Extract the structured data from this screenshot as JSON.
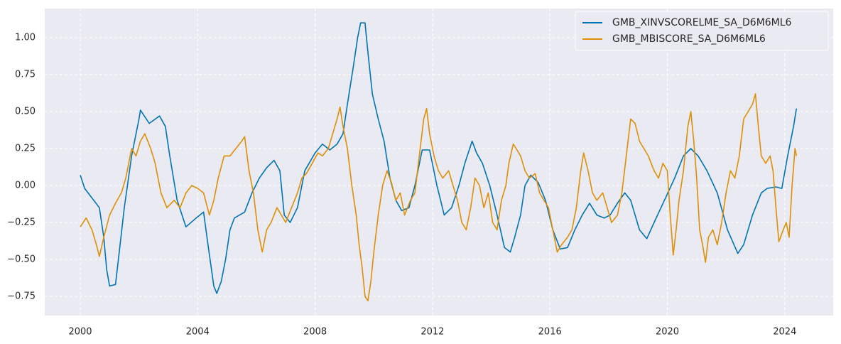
{
  "chart_data": {
    "type": "line",
    "xlim": [
      1998.79,
      2025.65
    ],
    "ylim": [
      -0.88,
      1.197
    ],
    "xticks": [
      2000,
      2004,
      2008,
      2012,
      2016,
      2020,
      2024
    ],
    "yticks": [
      {
        "value": -0.75,
        "label": "−0.75"
      },
      {
        "value": -0.5,
        "label": "−0.50"
      },
      {
        "value": -0.25,
        "label": "−0.25"
      },
      {
        "value": 0,
        "label": "0.00"
      },
      {
        "value": 0.25,
        "label": "0.25"
      },
      {
        "value": 0.5,
        "label": "0.50"
      },
      {
        "value": 0.75,
        "label": "0.75"
      },
      {
        "value": 1,
        "label": "1.00"
      }
    ],
    "grid": true,
    "legend": "upper right",
    "series": [
      {
        "name": "GMB_XINVSCORELME_SA_D6M6ML6",
        "color": "#0173b2",
        "x": [
          2000.0,
          2000.15,
          2000.65,
          2000.8,
          2000.9,
          2001.0,
          2001.2,
          2001.3,
          2001.5,
          2001.75,
          2002.0,
          2002.05,
          2002.35,
          2002.7,
          2002.9,
          2003.05,
          2003.3,
          2003.6,
          2003.95,
          2004.2,
          2004.35,
          2004.55,
          2004.65,
          2004.8,
          2004.95,
          2005.1,
          2005.25,
          2005.6,
          2005.85,
          2006.1,
          2006.35,
          2006.6,
          2006.8,
          2006.95,
          2007.15,
          2007.4,
          2007.65,
          2008.0,
          2008.25,
          2008.5,
          2008.75,
          2008.95,
          2009.1,
          2009.3,
          2009.45,
          2009.55,
          2009.7,
          2009.8,
          2009.95,
          2010.15,
          2010.35,
          2010.55,
          2010.75,
          2010.95,
          2011.2,
          2011.4,
          2011.65,
          2011.9,
          2012.15,
          2012.4,
          2012.65,
          2012.9,
          2013.1,
          2013.35,
          2013.5,
          2013.7,
          2013.95,
          2014.2,
          2014.45,
          2014.65,
          2014.8,
          2015.0,
          2015.15,
          2015.35,
          2015.6,
          2015.85,
          2016.1,
          2016.35,
          2016.6,
          2016.85,
          2017.1,
          2017.35,
          2017.6,
          2017.85,
          2018.05,
          2018.3,
          2018.55,
          2018.75,
          2019.05,
          2019.3,
          2019.55,
          2019.9,
          2020.25,
          2020.55,
          2020.8,
          2021.05,
          2021.35,
          2021.7,
          2022.05,
          2022.4,
          2022.6,
          2022.9,
          2023.2,
          2023.4,
          2023.7,
          2023.9,
          2024.1,
          2024.3,
          2024.4
        ],
        "values": [
          0.07,
          -0.02,
          -0.15,
          -0.35,
          -0.57,
          -0.68,
          -0.67,
          -0.5,
          -0.15,
          0.2,
          0.45,
          0.51,
          0.42,
          0.47,
          0.4,
          0.2,
          -0.1,
          -0.28,
          -0.22,
          -0.18,
          -0.4,
          -0.68,
          -0.73,
          -0.65,
          -0.5,
          -0.3,
          -0.22,
          -0.18,
          -0.05,
          0.05,
          0.12,
          0.17,
          0.1,
          -0.2,
          -0.25,
          -0.15,
          0.1,
          0.22,
          0.28,
          0.24,
          0.28,
          0.35,
          0.55,
          0.8,
          1.0,
          1.1,
          1.1,
          0.9,
          0.62,
          0.45,
          0.3,
          0.05,
          -0.1,
          -0.17,
          -0.15,
          0.0,
          0.24,
          0.24,
          0.0,
          -0.2,
          -0.15,
          0.0,
          0.15,
          0.3,
          0.22,
          0.15,
          0.0,
          -0.2,
          -0.42,
          -0.45,
          -0.35,
          -0.2,
          0.0,
          0.07,
          0.02,
          -0.1,
          -0.3,
          -0.43,
          -0.42,
          -0.3,
          -0.2,
          -0.12,
          -0.2,
          -0.22,
          -0.2,
          -0.12,
          -0.05,
          -0.1,
          -0.3,
          -0.36,
          -0.25,
          -0.1,
          0.05,
          0.2,
          0.25,
          0.2,
          0.1,
          -0.05,
          -0.3,
          -0.46,
          -0.4,
          -0.2,
          -0.05,
          -0.02,
          -0.01,
          -0.02,
          0.2,
          0.4,
          0.52
        ]
      },
      {
        "name": "GMB_MBISCORE_SA_D6M6ML6",
        "color": "#de8f05",
        "x": [
          2000.0,
          2000.2,
          2000.4,
          2000.55,
          2000.65,
          2000.8,
          2001.0,
          2001.2,
          2001.4,
          2001.55,
          2001.75,
          2001.9,
          2002.05,
          2002.2,
          2002.4,
          2002.55,
          2002.75,
          2002.95,
          2003.2,
          2003.4,
          2003.6,
          2003.8,
          2004.0,
          2004.2,
          2004.4,
          2004.55,
          2004.7,
          2004.9,
          2005.1,
          2005.3,
          2005.5,
          2005.6,
          2005.75,
          2005.9,
          2006.05,
          2006.2,
          2006.35,
          2006.5,
          2006.7,
          2006.85,
          2007.0,
          2007.2,
          2007.4,
          2007.55,
          2007.7,
          2007.9,
          2008.1,
          2008.25,
          2008.45,
          2008.6,
          2008.75,
          2008.85,
          2008.95,
          2009.1,
          2009.25,
          2009.4,
          2009.5,
          2009.6,
          2009.7,
          2009.8,
          2009.9,
          2010.0,
          2010.15,
          2010.3,
          2010.45,
          2010.6,
          2010.75,
          2010.9,
          2011.05,
          2011.25,
          2011.4,
          2011.55,
          2011.7,
          2011.8,
          2011.9,
          2012.05,
          2012.2,
          2012.35,
          2012.55,
          2012.7,
          2012.85,
          2013.0,
          2013.15,
          2013.3,
          2013.45,
          2013.6,
          2013.75,
          2013.9,
          2014.05,
          2014.2,
          2014.35,
          2014.5,
          2014.6,
          2014.75,
          2014.85,
          2015.0,
          2015.15,
          2015.3,
          2015.5,
          2015.65,
          2015.8,
          2015.95,
          2016.1,
          2016.25,
          2016.4,
          2016.6,
          2016.75,
          2016.9,
          2017.05,
          2017.15,
          2017.3,
          2017.45,
          2017.6,
          2017.8,
          2017.95,
          2018.1,
          2018.3,
          2018.45,
          2018.6,
          2018.75,
          2018.9,
          2019.05,
          2019.2,
          2019.35,
          2019.55,
          2019.7,
          2019.85,
          2020.0,
          2020.1,
          2020.2,
          2020.3,
          2020.4,
          2020.55,
          2020.7,
          2020.8,
          2020.9,
          2021.0,
          2021.1,
          2021.2,
          2021.3,
          2021.4,
          2021.55,
          2021.7,
          2021.85,
          2022.0,
          2022.15,
          2022.3,
          2022.45,
          2022.6,
          2022.75,
          2022.9,
          2023.0,
          2023.1,
          2023.2,
          2023.35,
          2023.5,
          2023.6,
          2023.7,
          2023.8,
          2023.95,
          2024.05,
          2024.15,
          2024.25,
          2024.35,
          2024.4
        ],
        "values": [
          -0.28,
          -0.22,
          -0.3,
          -0.4,
          -0.48,
          -0.35,
          -0.2,
          -0.12,
          -0.05,
          0.05,
          0.25,
          0.2,
          0.3,
          0.35,
          0.25,
          0.15,
          -0.05,
          -0.15,
          -0.1,
          -0.15,
          -0.05,
          0.0,
          -0.02,
          -0.05,
          -0.2,
          -0.1,
          0.05,
          0.2,
          0.2,
          0.25,
          0.3,
          0.33,
          0.1,
          -0.05,
          -0.3,
          -0.45,
          -0.3,
          -0.25,
          -0.15,
          -0.2,
          -0.25,
          -0.15,
          -0.05,
          0.05,
          0.08,
          0.15,
          0.22,
          0.2,
          0.25,
          0.35,
          0.45,
          0.53,
          0.4,
          0.25,
          0.0,
          -0.2,
          -0.4,
          -0.55,
          -0.75,
          -0.78,
          -0.65,
          -0.45,
          -0.2,
          0.0,
          0.1,
          0.02,
          -0.1,
          -0.05,
          -0.2,
          -0.1,
          -0.05,
          0.2,
          0.45,
          0.52,
          0.35,
          0.2,
          0.1,
          0.05,
          0.1,
          0.0,
          -0.1,
          -0.25,
          -0.3,
          -0.15,
          0.05,
          0.0,
          -0.15,
          -0.05,
          -0.25,
          -0.3,
          -0.1,
          0.0,
          0.15,
          0.28,
          0.25,
          0.2,
          0.1,
          0.05,
          0.08,
          -0.05,
          -0.1,
          -0.15,
          -0.3,
          -0.45,
          -0.4,
          -0.35,
          -0.3,
          -0.15,
          0.1,
          0.22,
          0.1,
          -0.05,
          -0.1,
          -0.05,
          -0.15,
          -0.25,
          -0.2,
          -0.05,
          0.2,
          0.45,
          0.42,
          0.3,
          0.25,
          0.2,
          0.1,
          0.05,
          0.15,
          0.1,
          -0.2,
          -0.47,
          -0.3,
          -0.1,
          0.1,
          0.4,
          0.5,
          0.3,
          0.05,
          -0.3,
          -0.4,
          -0.52,
          -0.35,
          -0.3,
          -0.4,
          -0.25,
          -0.05,
          0.1,
          0.05,
          0.2,
          0.45,
          0.5,
          0.55,
          0.62,
          0.4,
          0.2,
          0.15,
          0.2,
          0.1,
          -0.15,
          -0.38,
          -0.3,
          -0.25,
          -0.35,
          0.0,
          0.25,
          0.2
        ]
      }
    ]
  }
}
